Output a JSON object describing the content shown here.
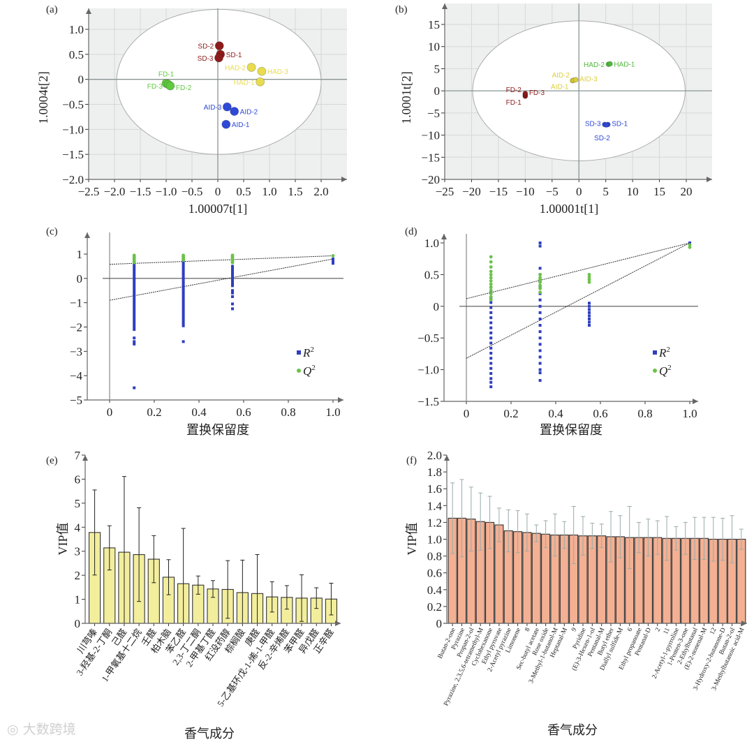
{
  "watermark": "大数跨境",
  "chart_data": [
    {
      "panel": "(a)",
      "type": "scatter",
      "xlabel": "1.00007t[1]",
      "ylabel": "1.0004t[2]",
      "xlim": [
        -2.5,
        2.45
      ],
      "ylim": [
        -2.0,
        1.45
      ],
      "xticks": [
        "−2.5",
        "−2.0",
        "−1.5",
        "−1.0",
        "−0.5",
        "0",
        "0.5",
        "1.0",
        "1.5",
        "2.0"
      ],
      "xtick_values": [
        -2.5,
        -2.0,
        -1.5,
        -1.0,
        -0.5,
        0,
        0.5,
        1.0,
        1.5,
        2.0
      ],
      "yticks": [
        "1.0",
        "0.5",
        "0",
        "−0.5",
        "−1.0",
        "−1.5",
        "−2.0"
      ],
      "ytick_values": [
        1.0,
        0.5,
        0,
        -0.5,
        -1.0,
        -1.5,
        -2.0
      ],
      "ellipse": {
        "cx": 0.02,
        "cy": -0.05,
        "rx": 1.98,
        "ry": 1.45
      },
      "groups": [
        {
          "name": "SD",
          "color": "#8e1b1b",
          "points": [
            {
              "label": "SD-2",
              "x": 0.03,
              "y": 0.67
            },
            {
              "label": "SD-1",
              "x": 0.05,
              "y": 0.5
            },
            {
              "label": "SD-3",
              "x": 0.02,
              "y": 0.43
            }
          ]
        },
        {
          "name": "HAD",
          "color": "#e8dc4e",
          "points": [
            {
              "label": "HAD-2",
              "x": 0.65,
              "y": 0.24
            },
            {
              "label": "HAD-3",
              "x": 0.85,
              "y": 0.16
            },
            {
              "label": "HAD-1",
              "x": 0.82,
              "y": -0.05
            }
          ]
        },
        {
          "name": "FD",
          "color": "#5fcb3f",
          "points": [
            {
              "label": "FD-1",
              "x": -1.0,
              "y": -0.08
            },
            {
              "label": "FD-3",
              "x": -0.96,
              "y": -0.1
            },
            {
              "label": "FD-2",
              "x": -0.92,
              "y": -0.13
            }
          ]
        },
        {
          "name": "AID",
          "color": "#2f49d8",
          "points": [
            {
              "label": "AID-3",
              "x": 0.18,
              "y": -0.55
            },
            {
              "label": "AID-2",
              "x": 0.32,
              "y": -0.64
            },
            {
              "label": "AID-1",
              "x": 0.16,
              "y": -0.9
            }
          ]
        }
      ]
    },
    {
      "panel": "(b)",
      "type": "scatter",
      "xlabel": "1.00001t[1]",
      "ylabel": "1.0001t[2]",
      "xlim": [
        -25,
        24.5
      ],
      "ylim": [
        -20,
        19.5
      ],
      "xticks": [
        "−25",
        "−20",
        "−15",
        "−10",
        "−5",
        "0",
        "5",
        "10",
        "15",
        "20"
      ],
      "xtick_values": [
        -25,
        -20,
        -15,
        -10,
        -5,
        0,
        5,
        10,
        15,
        20
      ],
      "yticks": [
        "15",
        "10",
        "5",
        "0",
        "−5",
        "−10",
        "−15",
        "−20"
      ],
      "ytick_values": [
        15,
        10,
        5,
        0,
        -5,
        -10,
        -15,
        -20
      ],
      "ellipse": {
        "cx": 0,
        "cy": 0,
        "rx": 19.8,
        "ry": 15.8
      },
      "groups": [
        {
          "name": "HAD",
          "color": "#4fb83a",
          "points": [
            {
              "label": "HAD-2",
              "x": 5.5,
              "y": 6.0
            },
            {
              "label": "HAD-1",
              "x": 5.8,
              "y": 6.1
            }
          ]
        },
        {
          "name": "AID",
          "color": "#dccf3c",
          "points": [
            {
              "label": "AID-1",
              "x": -1.2,
              "y": 2.3
            },
            {
              "label": "AID-2",
              "x": -1.0,
              "y": 2.4
            },
            {
              "label": "AID-3",
              "x": -0.6,
              "y": 2.5
            }
          ]
        },
        {
          "name": "FD",
          "color": "#8e1b1b",
          "points": [
            {
              "label": "FD-1",
              "x": -10,
              "y": -1.2
            },
            {
              "label": "FD-2",
              "x": -10,
              "y": -0.9
            },
            {
              "label": "FD-3",
              "x": -10,
              "y": -0.6
            }
          ]
        },
        {
          "name": "SD",
          "color": "#2f49d8",
          "points": [
            {
              "label": "SD-3",
              "x": 4.8,
              "y": -7.6
            },
            {
              "label": "SD-1",
              "x": 5.4,
              "y": -7.6
            },
            {
              "label": "SD-2",
              "x": 5.1,
              "y": -7.7
            }
          ]
        }
      ]
    },
    {
      "panel": "(c)",
      "type": "scatter",
      "xlabel": "置换保留度",
      "ylabel": "",
      "xlim": [
        -0.1,
        1.04
      ],
      "ylim": [
        -5,
        1.9
      ],
      "xticks": [
        "0",
        "0.2",
        "0.4",
        "0.6",
        "0.8",
        "1.0"
      ],
      "xtick_values": [
        0,
        0.2,
        0.4,
        0.6,
        0.8,
        1.0
      ],
      "yticks": [
        "1",
        "0",
        "−1",
        "−2",
        "−3",
        "−4",
        "−5"
      ],
      "ytick_values": [
        1,
        0,
        -1,
        -2,
        -3,
        -4,
        -5
      ],
      "legend": [
        {
          "label": "R",
          "sup": "2",
          "color": "#2f3fbf",
          "marker": "square"
        },
        {
          "label": "Q",
          "sup": "2",
          "color": "#6cc24a",
          "marker": "circle"
        }
      ],
      "legend_position": "bottom-right",
      "series": [
        {
          "name": "R2",
          "color": "#2f3fbf",
          "columns": [
            {
              "x": 0.11,
              "y": [
                0.6,
                0.5,
                0.4,
                0.3,
                0.2,
                0.1,
                0,
                -0.1,
                -0.2,
                -0.3,
                -0.4,
                -0.5,
                -0.6,
                -0.7,
                -0.8,
                -0.9,
                -1.0,
                -1.1,
                -1.2,
                -1.3,
                -1.4,
                -1.5,
                -1.6,
                -1.7,
                -1.8,
                -1.9,
                -2.0,
                -2.1,
                -2.45,
                -2.6,
                -2.7,
                -4.5
              ]
            },
            {
              "x": 0.33,
              "y": [
                0.75,
                0.65,
                0.55,
                0.45,
                0.35,
                0.25,
                0.15,
                0.05,
                -0.05,
                -0.15,
                -0.25,
                -0.35,
                -0.45,
                -0.55,
                -0.65,
                -0.75,
                -0.85,
                -0.95,
                -1.05,
                -1.15,
                -1.25,
                -1.35,
                -1.45,
                -1.55,
                -1.65,
                -1.75,
                -1.85,
                -1.95,
                -2.6
              ]
            },
            {
              "x": 0.55,
              "y": [
                0.5,
                0.4,
                0.3,
                0.2,
                0.1,
                0,
                -0.1,
                -0.2,
                -0.3,
                -0.5,
                -0.6,
                -0.75,
                -1.05,
                -1.25
              ]
            },
            {
              "x": 1.0,
              "y": [
                0.8,
                0.7,
                0.62
              ]
            }
          ]
        },
        {
          "name": "Q2",
          "color": "#6cc24a",
          "columns": [
            {
              "x": 0.11,
              "y": [
                0.95,
                0.9,
                0.85,
                0.8,
                0.75,
                0.7,
                0.65
              ]
            },
            {
              "x": 0.33,
              "y": [
                0.95,
                0.9,
                0.85,
                0.8,
                0.75
              ]
            },
            {
              "x": 0.55,
              "y": [
                0.95,
                0.9,
                0.85,
                0.8,
                0.75,
                0.7,
                0.65
              ]
            },
            {
              "x": 1.0,
              "y": [
                0.93
              ]
            }
          ]
        }
      ],
      "trend_lines": [
        [
          [
            0,
            0.58
          ],
          [
            1,
            0.93
          ]
        ],
        [
          [
            0,
            -0.9
          ],
          [
            1,
            0.8
          ]
        ]
      ]
    },
    {
      "panel": "(d)",
      "type": "scatter",
      "xlabel": "置换保留度",
      "ylabel": "",
      "xlim": [
        -0.1,
        1.04
      ],
      "ylim": [
        -1.5,
        1.3
      ],
      "xticks": [
        "0",
        "0.2",
        "0.4",
        "0.6",
        "0.8",
        "1.0"
      ],
      "xtick_values": [
        0,
        0.2,
        0.4,
        0.6,
        0.8,
        1.0
      ],
      "yticks": [
        "1.0",
        "0.5",
        "0",
        "−0.5",
        "−1.0",
        "−1.5"
      ],
      "ytick_values": [
        1.0,
        0.5,
        0,
        -0.5,
        -1.0,
        -1.5
      ],
      "legend": [
        {
          "label": "R",
          "sup": "2",
          "color": "#2f3fbf",
          "marker": "square"
        },
        {
          "label": "Q",
          "sup": "2",
          "color": "#6cc24a",
          "marker": "circle"
        }
      ],
      "legend_position": "bottom-right",
      "series": [
        {
          "name": "R2",
          "color": "#2f3fbf",
          "columns": [
            {
              "x": 0.11,
              "y": [
                0.3,
                0.22,
                0.14,
                0.06,
                -0.02,
                -0.1,
                -0.18,
                -0.26,
                -0.34,
                -0.42,
                -0.5,
                -0.58,
                -0.66,
                -0.74,
                -0.82,
                -0.9,
                -0.98,
                -1.06,
                -1.14,
                -1.2,
                -1.27
              ]
            },
            {
              "x": 0.33,
              "y": [
                1.0,
                0.95,
                0.6,
                0.5,
                0.4,
                0.3,
                0.2,
                0.1,
                0,
                -0.1,
                -0.2,
                -0.3,
                -0.4,
                -0.5,
                -0.6,
                -0.7,
                -0.8,
                -0.9,
                -1.0,
                -1.05,
                -1.17
              ]
            },
            {
              "x": 0.55,
              "y": [
                0.05,
                0,
                -0.05,
                -0.1,
                -0.15,
                -0.2,
                -0.25,
                -0.3
              ]
            },
            {
              "x": 1.0,
              "y": [
                1.0,
                0.98
              ]
            }
          ]
        },
        {
          "name": "Q2",
          "color": "#6cc24a",
          "columns": [
            {
              "x": 0.11,
              "y": [
                0.78,
                0.7,
                0.62,
                0.55,
                0.5,
                0.45,
                0.4,
                0.35,
                0.3,
                0.25,
                0.2,
                0.15,
                0.1
              ]
            },
            {
              "x": 0.33,
              "y": [
                0.5,
                0.45,
                0.42,
                0.38,
                0.33,
                0.28,
                0.22
              ]
            },
            {
              "x": 0.55,
              "y": [
                0.5,
                0.46,
                0.42,
                0.38
              ]
            },
            {
              "x": 1.0,
              "y": [
                0.97,
                0.93
              ]
            }
          ]
        }
      ],
      "trend_lines": [
        [
          [
            0,
            0.12
          ],
          [
            1,
            1.0
          ]
        ],
        [
          [
            0,
            -0.82
          ],
          [
            1,
            1.0
          ]
        ]
      ]
    },
    {
      "panel": "(e)",
      "type": "bar",
      "xlabel": "香气成分",
      "ylabel": "VIP值",
      "ylim": [
        0,
        7
      ],
      "yticks": [
        "0",
        "1",
        "2",
        "3",
        "4",
        "5",
        "6",
        "7"
      ],
      "ytick_values": [
        0,
        1,
        2,
        3,
        4,
        5,
        6,
        7
      ],
      "color": "#f3ee9c",
      "categories": [
        "川芎嗪",
        "3-羟基-2-丁酮",
        "己醛",
        "1-甲氧基十二烷",
        "壬醛",
        "柏木脑",
        "苯乙醛",
        "2,3-丁二酮",
        "2-甲基丁醛",
        "红没药醇",
        "棕榈酸",
        "庚醛",
        "5-乙基环戊-1-烯-1-甲醛",
        "反-2-辛烯醛",
        "苯甲醛",
        "异戊醛",
        "正辛醛"
      ],
      "values": [
        3.78,
        3.14,
        2.96,
        2.86,
        2.67,
        1.92,
        1.65,
        1.59,
        1.43,
        1.41,
        1.28,
        1.24,
        1.1,
        1.08,
        1.05,
        1.05,
        1.01
      ],
      "errors": [
        1.77,
        0.92,
        3.15,
        1.95,
        0.98,
        0.73,
        2.3,
        0.38,
        0.35,
        1.2,
        1.35,
        1.62,
        0.63,
        0.49,
        0.97,
        0.43,
        0.66
      ]
    },
    {
      "panel": "(f)",
      "type": "bar",
      "xlabel": "香气成分",
      "ylabel": "VIP值",
      "ylim": [
        0,
        2.0
      ],
      "yticks": [
        "0",
        "0.2",
        "0.4",
        "0.6",
        "0.8",
        "1.0",
        "1.2",
        "1.4",
        "1.6",
        "1.8",
        "2.0"
      ],
      "ytick_values": [
        0,
        0.2,
        0.4,
        0.6,
        0.8,
        1.0,
        1.2,
        1.4,
        1.6,
        1.8,
        2.0
      ],
      "color": "#f4b093",
      "categories": [
        "Butan-2-one",
        "Pyrazine",
        "Propan-2-ol",
        "Pyrazine, 2,3,5,6-tetramethyl-M",
        "Cyclohexanone",
        "Ethyl pyruvate",
        "2-Acetyl pyrazine",
        "Limonene",
        "8",
        "Sec-butyl acetate",
        "Rose oxide",
        "3-Methyl-1-butanol-M",
        "Heptanal-M",
        "9",
        "Pyridine",
        "(E)-3-Hexen-1-ol",
        "Pentanal-M",
        "Butyl ether",
        "Diallyl sulfide-M",
        "6",
        "Ethyl propanoate",
        "Pentanal-D",
        "2",
        "11",
        "2-Acetyl-1-pyrroline",
        "1-Penten-3-one",
        "2-Ethylbutanal",
        "(E)-2-nonenal-M",
        "12",
        "3-Hydroxy-2-butanone-D",
        "Butan-2-ol",
        "3-Methylbutanoic acid-M"
      ],
      "values": [
        1.25,
        1.25,
        1.24,
        1.21,
        1.2,
        1.17,
        1.1,
        1.09,
        1.08,
        1.07,
        1.06,
        1.05,
        1.05,
        1.05,
        1.04,
        1.04,
        1.04,
        1.03,
        1.03,
        1.02,
        1.02,
        1.02,
        1.02,
        1.01,
        1.01,
        1.01,
        1.01,
        1.01,
        1.0,
        1.0,
        1.0,
        1.0
      ],
      "errors": [
        0.42,
        0.46,
        0.38,
        0.34,
        0.31,
        0.2,
        0.25,
        0.25,
        0.22,
        0.1,
        0.16,
        0.25,
        0.16,
        0.34,
        0.23,
        0.15,
        0.14,
        0.3,
        0.25,
        0.37,
        0.18,
        0.22,
        0.2,
        0.26,
        0.14,
        0.19,
        0.25,
        0.25,
        0.26,
        0.25,
        0.28,
        0.12
      ]
    }
  ]
}
